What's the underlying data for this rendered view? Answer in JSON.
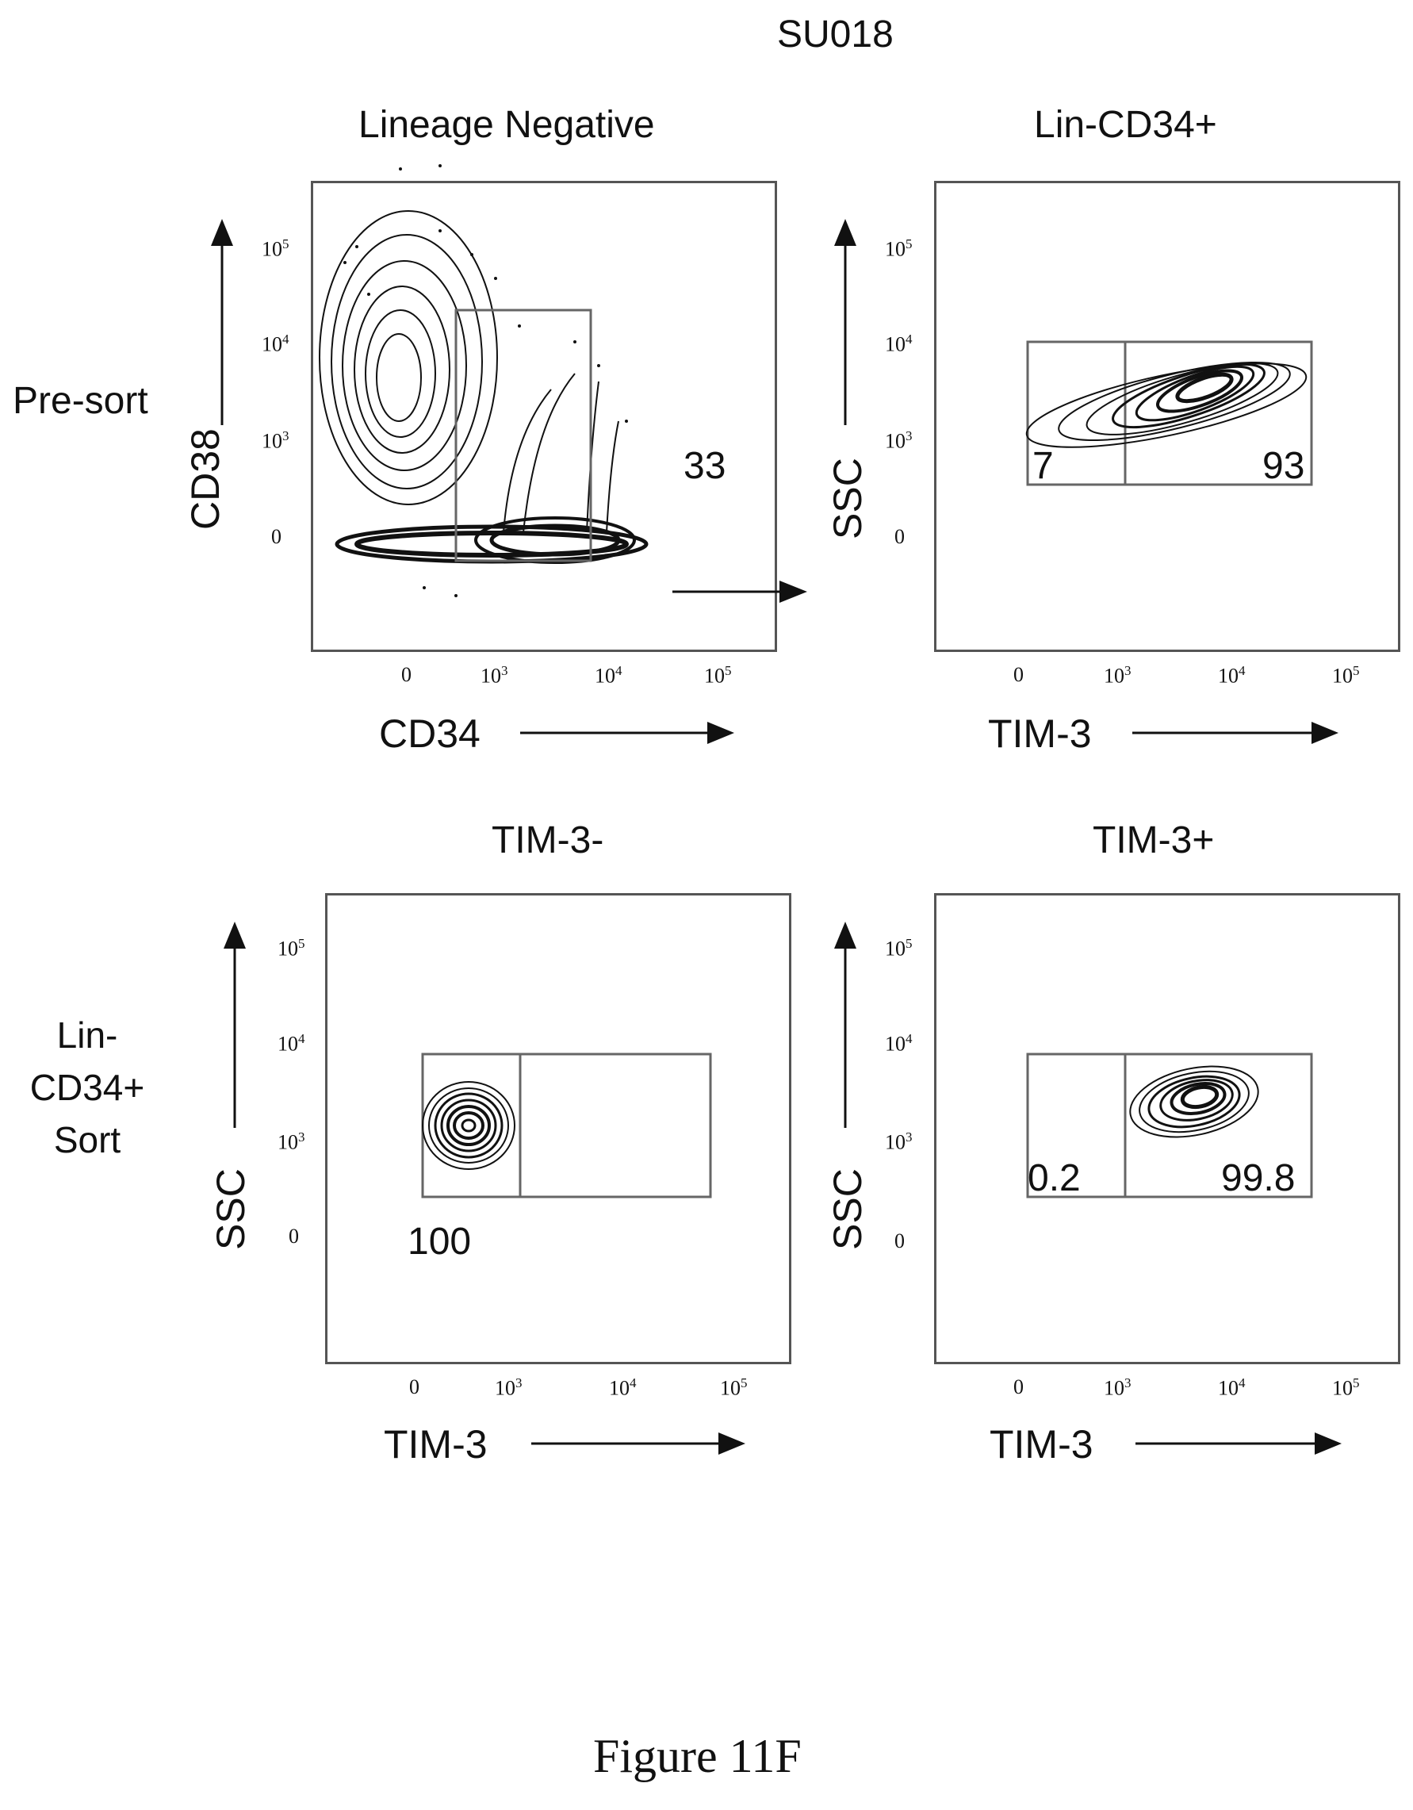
{
  "figure": {
    "sample_title": "SU018",
    "caption": "Figure 11F",
    "row_labels": {
      "presort": "Pre-sort",
      "sort": [
        "Lin-",
        "CD34+",
        "Sort"
      ]
    }
  },
  "colors": {
    "ink": "#111111",
    "axis": "#555555",
    "gate": "#666666"
  },
  "tick_labels": {
    "zero": "0",
    "base": "10",
    "exponents": [
      "3",
      "4",
      "5"
    ]
  },
  "panels": [
    {
      "id": "lineage-negative",
      "title": "Lineage Negative",
      "xlabel": "CD34",
      "ylabel": "CD38",
      "gate_labels": [
        "33"
      ]
    },
    {
      "id": "lin-cd34-pos",
      "title": "Lin-CD34+",
      "xlabel": "TIM-3",
      "ylabel": "SSC",
      "gate_labels": [
        "7",
        "93"
      ]
    },
    {
      "id": "tim3-neg",
      "title": "TIM-3-",
      "xlabel": "TIM-3",
      "ylabel": "SSC",
      "gate_labels": [
        "100"
      ]
    },
    {
      "id": "tim3-pos",
      "title": "TIM-3+",
      "xlabel": "TIM-3",
      "ylabel": "SSC",
      "gate_labels": [
        "0.2",
        "99.8"
      ]
    }
  ],
  "chart_data": [
    {
      "type": "scatter",
      "title": "Lineage Negative",
      "xlabel": "CD34",
      "ylabel": "CD38",
      "x_scale": "biexponential",
      "y_scale": "biexponential",
      "gates": [
        {
          "name": "CD34+",
          "percent": 33
        }
      ]
    },
    {
      "type": "scatter",
      "title": "Lin-CD34+",
      "xlabel": "TIM-3",
      "ylabel": "SSC",
      "x_scale": "biexponential",
      "y_scale": "biexponential",
      "gates": [
        {
          "name": "TIM-3-",
          "percent": 7
        },
        {
          "name": "TIM-3+",
          "percent": 93
        }
      ]
    },
    {
      "type": "scatter",
      "title": "TIM-3-",
      "xlabel": "TIM-3",
      "ylabel": "SSC",
      "x_scale": "biexponential",
      "y_scale": "biexponential",
      "gates": [
        {
          "name": "TIM-3-",
          "percent": 100
        }
      ]
    },
    {
      "type": "scatter",
      "title": "TIM-3+",
      "xlabel": "TIM-3",
      "ylabel": "SSC",
      "x_scale": "biexponential",
      "y_scale": "biexponential",
      "gates": [
        {
          "name": "TIM-3-",
          "percent": 0.2
        },
        {
          "name": "TIM-3+",
          "percent": 99.8
        }
      ]
    }
  ]
}
